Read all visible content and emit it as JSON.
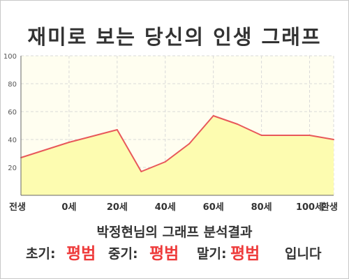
{
  "title": "재미로 보는 당신의 인생 그래프",
  "result": {
    "heading": "박정현님의 그래프 분석결과",
    "early_label": "초기:",
    "early_value": "평범",
    "middle_label": "중기:",
    "middle_value": "평범",
    "late_label": "말기:",
    "late_value": "평범",
    "suffix": "입니다"
  },
  "colors": {
    "line": "#e8585a",
    "fill": "#fdfcb0",
    "plot_bg": "#fffef0",
    "grid": "#d9d9d9",
    "verdict": "#ee3b3b"
  },
  "chart_data": {
    "type": "area",
    "categories": [
      "전생",
      "0세",
      "20세",
      "40세",
      "60세",
      "80세",
      "100세",
      "환생"
    ],
    "x": [
      -20,
      0,
      20,
      30,
      40,
      50,
      60,
      70,
      80,
      90,
      100,
      110
    ],
    "values": [
      27,
      38,
      47,
      17,
      24,
      37,
      57,
      51,
      43,
      43,
      43,
      40
    ],
    "ylim": [
      0,
      100
    ],
    "yticks": [
      "20",
      "40",
      "60",
      "80",
      "100"
    ],
    "grid": true,
    "xlabel": "",
    "ylabel": ""
  }
}
